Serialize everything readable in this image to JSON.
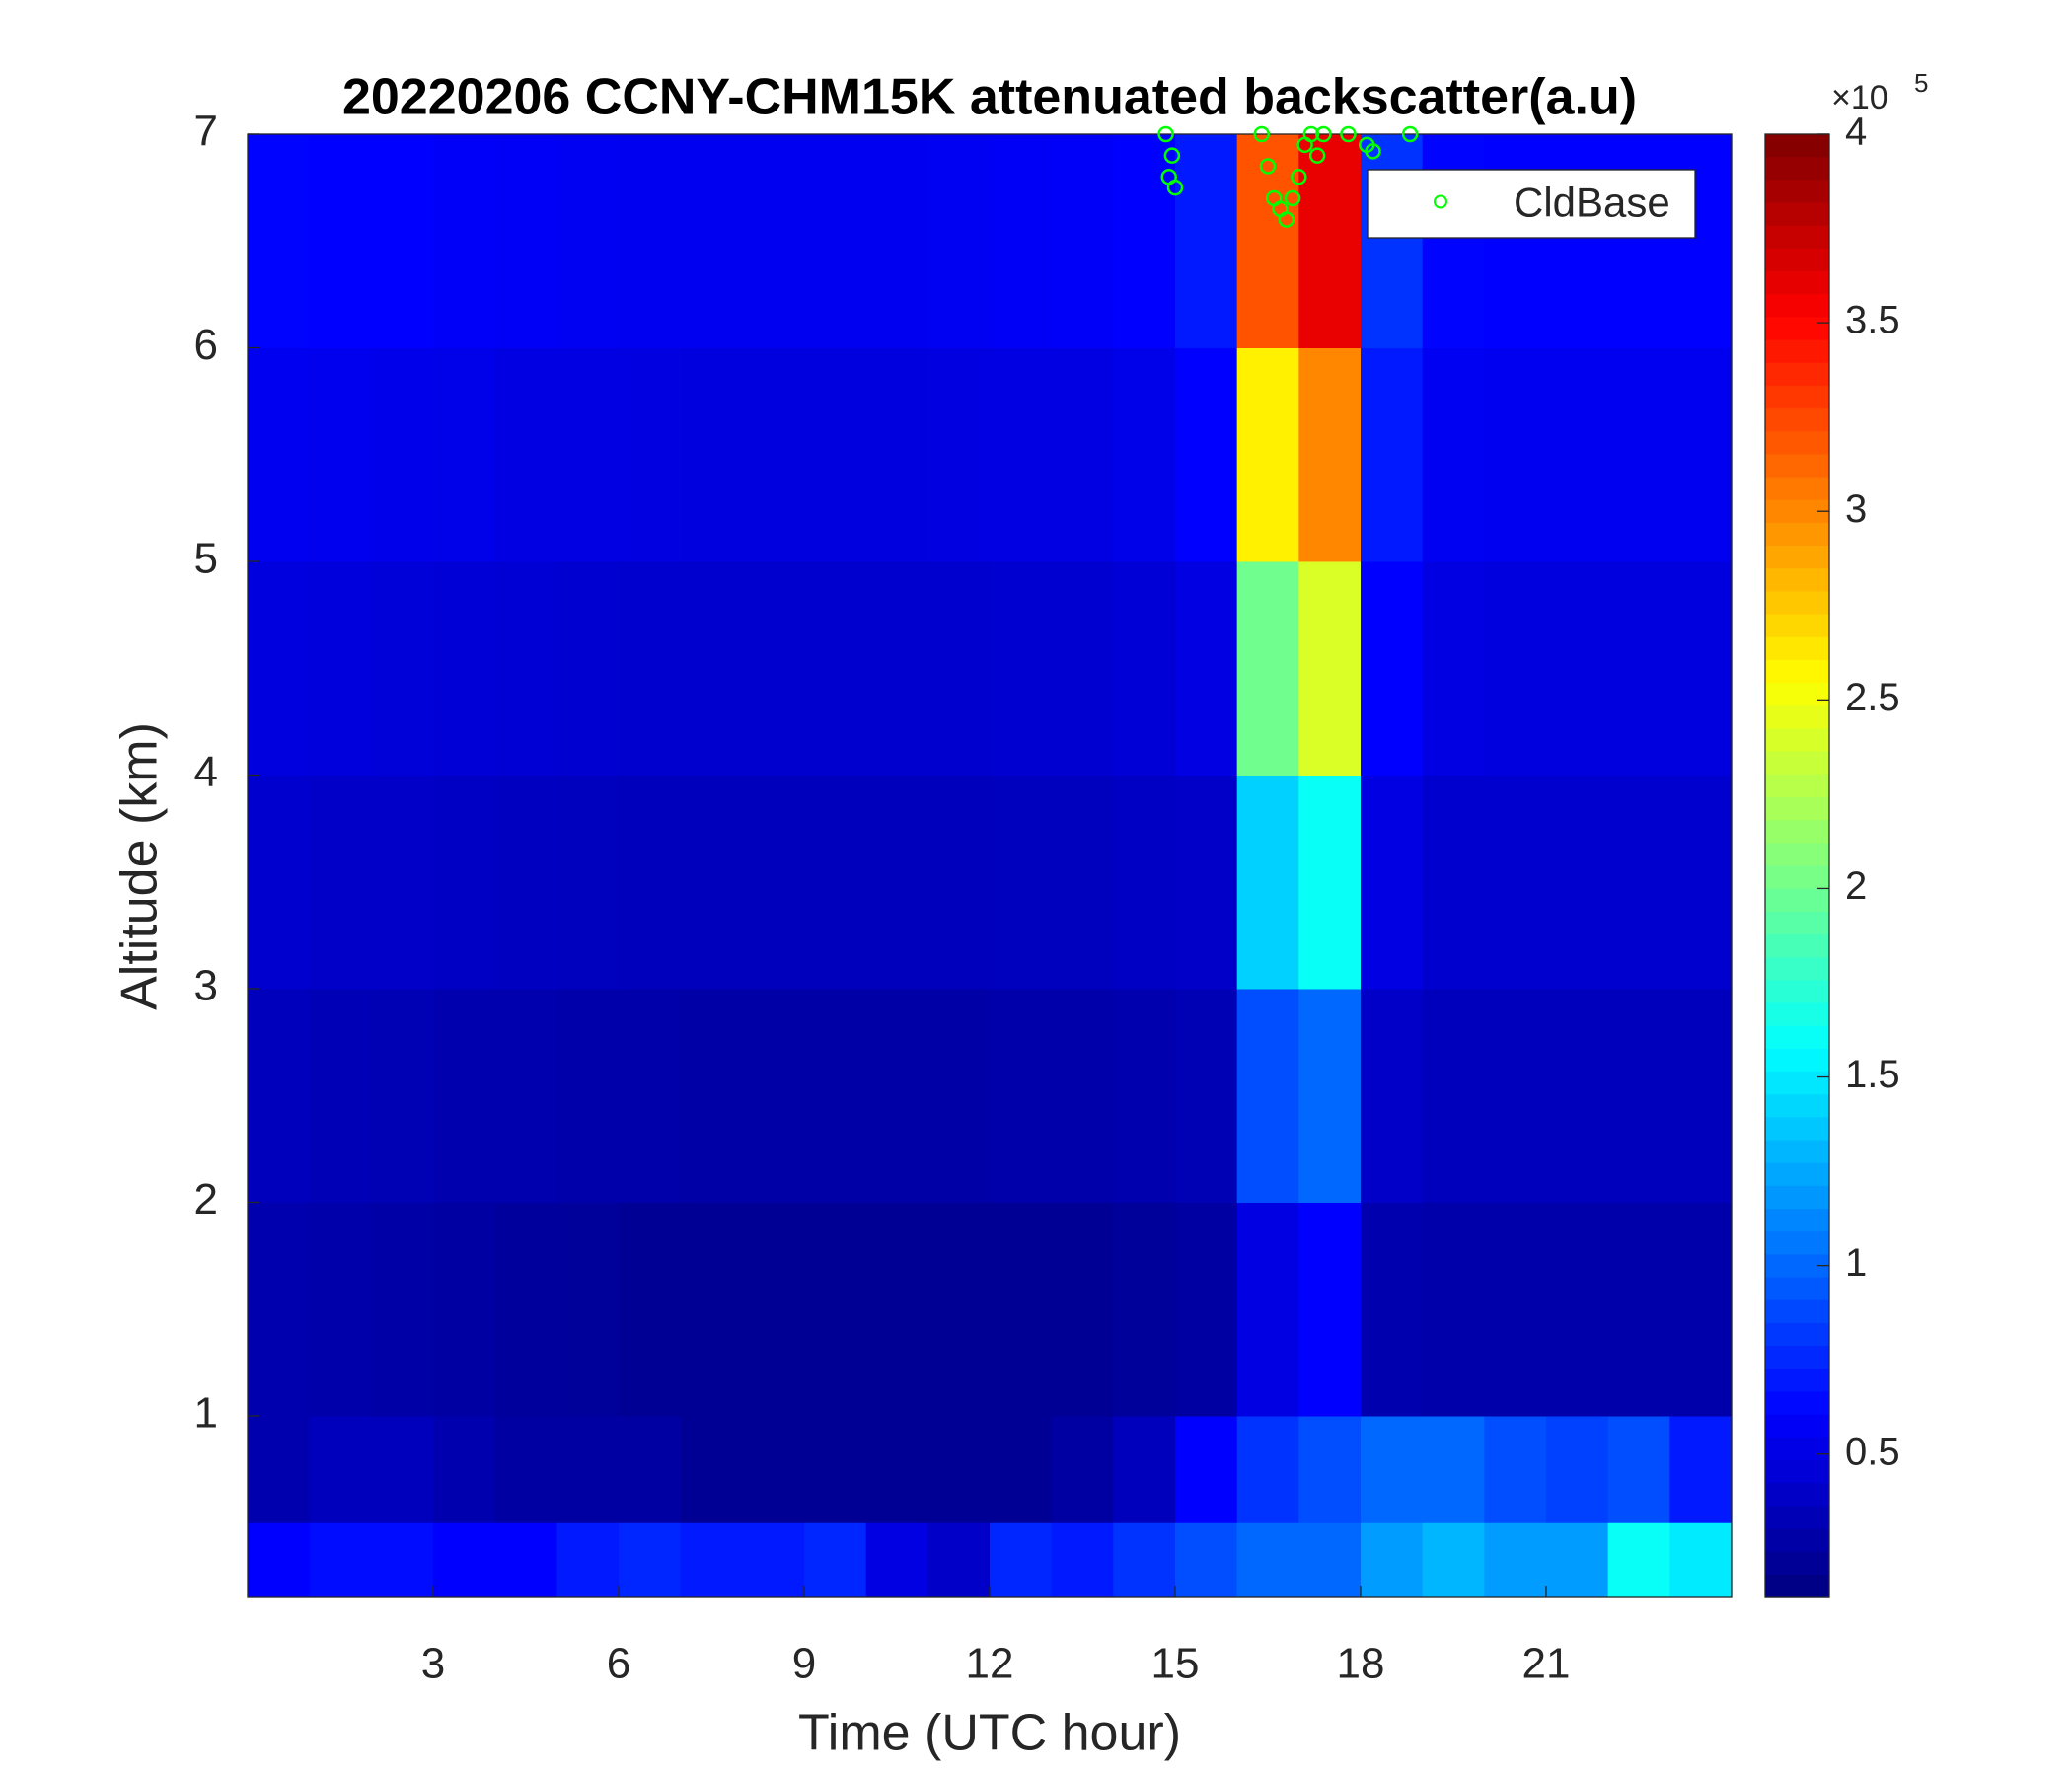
{
  "chart_data": {
    "type": "heatmap",
    "title": "20220206 CCNY-CHM15K attenuated backscatter(a.u)",
    "x_label": "Time (UTC hour)",
    "y_label": "Altitude (km)",
    "xlim": [
      0,
      24
    ],
    "xticks": [
      3,
      6,
      9,
      12,
      15,
      18,
      21
    ],
    "ylim": [
      0.15,
      7
    ],
    "yticks": [
      1,
      2,
      3,
      4,
      5,
      6,
      7
    ],
    "colormap": "jet",
    "clim": [
      0.12,
      4
    ],
    "cticks": [
      0.5,
      1,
      1.5,
      2,
      2.5,
      3,
      3.5,
      4
    ],
    "colorbar_exponent_base": "×10",
    "colorbar_exponent": "5",
    "x_edges": [
      0,
      1,
      2,
      3,
      4,
      5,
      6,
      7,
      8,
      9,
      10,
      11,
      12,
      13,
      14,
      15,
      16,
      17,
      18,
      19,
      20,
      21,
      22,
      23,
      24
    ],
    "y_edges": [
      0.15,
      0.5,
      1,
      2,
      3,
      4,
      5,
      6,
      7
    ],
    "z": [
      [
        0.6,
        0.65,
        0.65,
        0.6,
        0.6,
        0.7,
        0.75,
        0.7,
        0.7,
        0.75,
        0.5,
        0.4,
        0.75,
        0.7,
        0.8,
        0.9,
        1.0,
        1.0,
        1.2,
        1.3,
        1.2,
        1.2,
        1.6,
        1.5
      ],
      [
        0.3,
        0.35,
        0.35,
        0.3,
        0.25,
        0.25,
        0.25,
        0.2,
        0.2,
        0.2,
        0.2,
        0.2,
        0.2,
        0.25,
        0.35,
        0.6,
        0.8,
        0.9,
        1.0,
        1.0,
        0.9,
        0.85,
        0.9,
        0.7
      ],
      [
        0.3,
        0.28,
        0.27,
        0.25,
        0.23,
        0.22,
        0.2,
        0.2,
        0.2,
        0.2,
        0.2,
        0.2,
        0.2,
        0.2,
        0.22,
        0.25,
        0.5,
        0.6,
        0.3,
        0.28,
        0.28,
        0.28,
        0.28,
        0.28
      ],
      [
        0.35,
        0.33,
        0.32,
        0.3,
        0.3,
        0.28,
        0.28,
        0.27,
        0.27,
        0.27,
        0.27,
        0.27,
        0.28,
        0.28,
        0.3,
        0.32,
        0.9,
        1.0,
        0.4,
        0.35,
        0.35,
        0.35,
        0.35,
        0.35
      ],
      [
        0.42,
        0.4,
        0.4,
        0.38,
        0.37,
        0.36,
        0.35,
        0.35,
        0.35,
        0.35,
        0.35,
        0.35,
        0.36,
        0.36,
        0.38,
        0.4,
        1.4,
        1.6,
        0.5,
        0.42,
        0.42,
        0.42,
        0.42,
        0.42
      ],
      [
        0.48,
        0.47,
        0.46,
        0.45,
        0.44,
        0.43,
        0.42,
        0.42,
        0.42,
        0.42,
        0.42,
        0.42,
        0.43,
        0.43,
        0.45,
        0.5,
        2.0,
        2.4,
        0.6,
        0.5,
        0.48,
        0.48,
        0.48,
        0.48
      ],
      [
        0.55,
        0.54,
        0.53,
        0.52,
        0.5,
        0.5,
        0.49,
        0.48,
        0.48,
        0.48,
        0.48,
        0.49,
        0.5,
        0.5,
        0.52,
        0.6,
        2.6,
        3.0,
        0.7,
        0.56,
        0.55,
        0.55,
        0.55,
        0.55
      ],
      [
        0.62,
        0.6,
        0.6,
        0.58,
        0.57,
        0.56,
        0.55,
        0.55,
        0.55,
        0.55,
        0.55,
        0.56,
        0.57,
        0.58,
        0.6,
        0.7,
        3.2,
        3.6,
        0.8,
        0.62,
        0.6,
        0.6,
        0.6,
        0.6
      ]
    ],
    "overlay": {
      "type": "scatter",
      "name": "CldBase",
      "color": "#00ff00",
      "x": [
        14.85,
        14.9,
        14.95,
        15.0,
        16.4,
        16.5,
        16.6,
        16.7,
        16.8,
        16.9,
        17.0,
        17.1,
        17.2,
        17.3,
        17.4,
        17.8,
        18.1,
        18.2,
        18.8
      ],
      "y": [
        7,
        6.8,
        6.9,
        6.75,
        7,
        6.85,
        6.7,
        6.65,
        6.6,
        6.7,
        6.8,
        6.95,
        7,
        6.9,
        7,
        7,
        6.95,
        6.92,
        7
      ]
    },
    "legend": "upper right"
  }
}
